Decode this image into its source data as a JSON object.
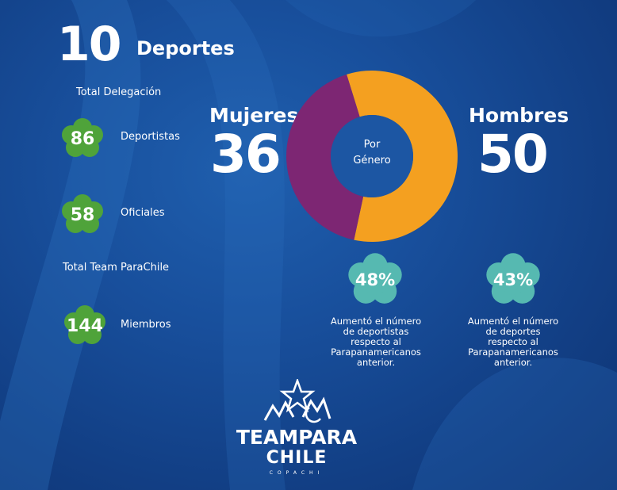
{
  "header": {
    "sports_count": "10",
    "sports_label": "Deportes"
  },
  "delegation": {
    "title": "Total Delegación",
    "items": [
      {
        "value": "86",
        "label": "Deportistas"
      },
      {
        "value": "58",
        "label": "Oficiales"
      }
    ]
  },
  "team": {
    "title": "Total Team ParaChile",
    "items": [
      {
        "value": "144",
        "label": "Miembros"
      }
    ]
  },
  "gender": {
    "women_label": "Mujeres",
    "women_value": "36",
    "men_label": "Hombres",
    "men_value": "50",
    "center_lines": [
      "Por",
      "Género"
    ]
  },
  "chart_data": {
    "type": "pie",
    "variant": "donut",
    "categories": [
      "Hombres",
      "Mujeres"
    ],
    "values": [
      50,
      36
    ],
    "colors": [
      "#f4a020",
      "#7d2673"
    ]
  },
  "stats": [
    {
      "value": "48%",
      "lines": [
        "Aumentó el número",
        "de deportistas",
        "respecto al",
        "Parapanamericanos",
        "anterior."
      ]
    },
    {
      "value": "43%",
      "lines": [
        "Aumentó el número",
        "de deportes",
        "respecto al",
        "Parapanamericanos",
        "anterior."
      ]
    }
  ],
  "logo": {
    "line1": "TEAMPARA",
    "line2": "CHILE",
    "line3": "COPACHI"
  },
  "colors": {
    "green_badge": "#4fa33a",
    "teal_badge": "#56b9b1",
    "women": "#7d2673",
    "men": "#f4a020",
    "background": "#184f9c"
  }
}
